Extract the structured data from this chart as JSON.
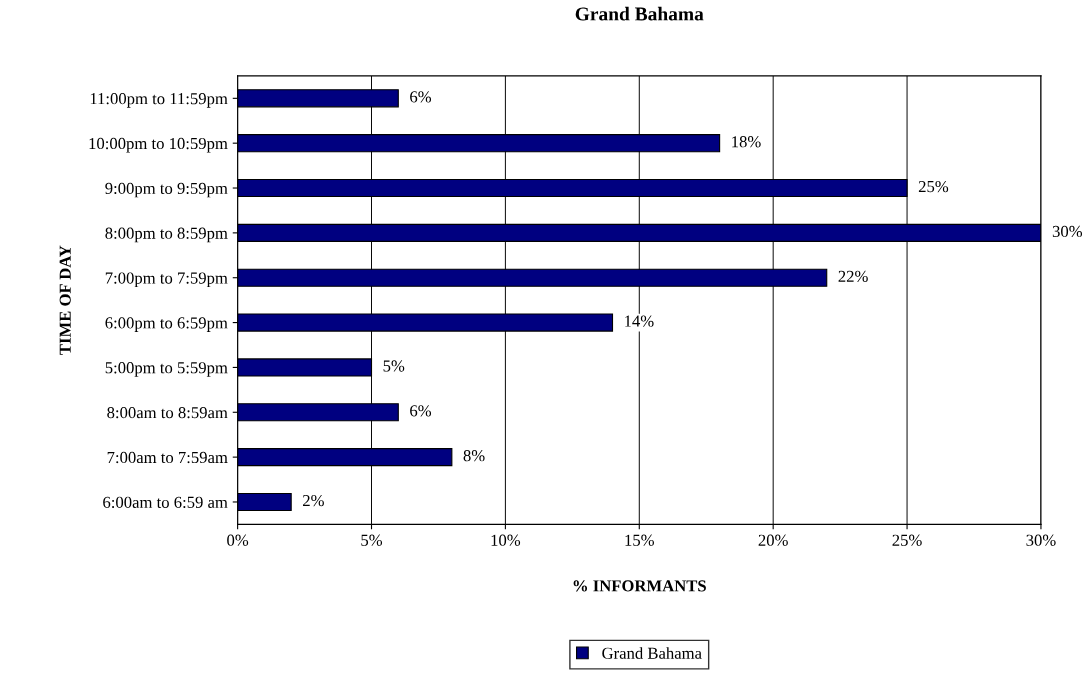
{
  "chart_data": {
    "type": "bar",
    "orientation": "horizontal",
    "title": "Grand Bahama",
    "xlabel": "% INFORMANTS",
    "ylabel": "TIME OF DAY",
    "categories": [
      "11:00pm to 11:59pm",
      "10:00pm to 10:59pm",
      "9:00pm to 9:59pm",
      "8:00pm to 8:59pm",
      "7:00pm to 7:59pm",
      "6:00pm to 6:59pm",
      "5:00pm to 5:59pm",
      "8:00am to 8:59am",
      "7:00am to 7:59am",
      "6:00am to 6:59 am"
    ],
    "series": [
      {
        "name": "Grand Bahama",
        "color": "#000080",
        "values": [
          6,
          18,
          25,
          30,
          22,
          14,
          5,
          6,
          8,
          2
        ],
        "value_labels": [
          "6%",
          "18%",
          "25%",
          "30%",
          "22%",
          "14%",
          "5%",
          "6%",
          "8%",
          "2%"
        ]
      }
    ],
    "xlim": [
      0,
      30
    ],
    "xticks": [
      {
        "value": 0,
        "label": "0%"
      },
      {
        "value": 5,
        "label": "5%"
      },
      {
        "value": 10,
        "label": "10%"
      },
      {
        "value": 15,
        "label": "15%"
      },
      {
        "value": 20,
        "label": "20%"
      },
      {
        "value": 25,
        "label": "25%"
      },
      {
        "value": 30,
        "label": "30%"
      }
    ],
    "grid": "x",
    "legend": "bottom"
  }
}
